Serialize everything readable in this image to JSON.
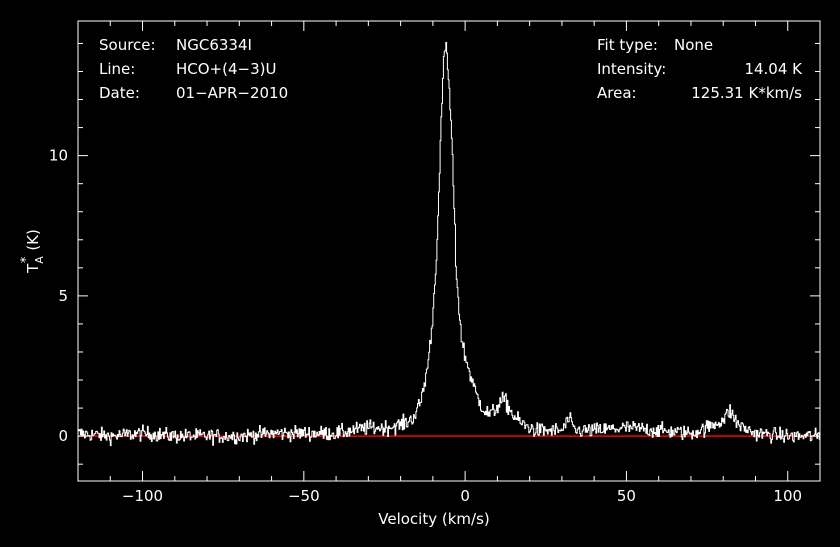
{
  "chart_data": {
    "type": "line",
    "background": "#000000",
    "colors": {
      "axes": "#ffffff",
      "spectrum": "#ffffff",
      "baseline": "#ff0000"
    },
    "xlabel": "Velocity (km/s)",
    "ylabel": "T_A^* (K)",
    "ylabel_parts": {
      "main": "T",
      "sub": "A",
      "sup": "*",
      "unit": "(K)"
    },
    "xlim": [
      -120,
      110
    ],
    "ylim": [
      -1.6,
      14.8
    ],
    "xticks": [
      -100,
      -50,
      0,
      50,
      100
    ],
    "xtick_labels": [
      "−100",
      "−50",
      "0",
      "50",
      "100"
    ],
    "yticks": [
      0,
      5,
      10
    ],
    "ytick_labels": [
      "0",
      "5",
      "10"
    ],
    "baseline_y": 0,
    "info_left": [
      {
        "key": "Source:",
        "value": "NGC6334I"
      },
      {
        "key": "Line:",
        "value": "HCO+(4−3)U"
      },
      {
        "key": "Date:",
        "value": "01−APR−2010"
      }
    ],
    "info_right": [
      {
        "key": "Fit type:",
        "value": "None"
      },
      {
        "key": "Intensity:",
        "value": "14.04 K"
      },
      {
        "key": "Area:",
        "value": "125.31 K*km/s"
      }
    ],
    "series": [
      {
        "x": [
          -120,
          -110,
          -100,
          -90,
          -80,
          -70,
          -60,
          -50,
          -40,
          -30,
          -25,
          -20,
          -18,
          -16,
          -15,
          -14,
          -13,
          -12,
          -11,
          -10,
          -9,
          -8,
          -7.5,
          -7,
          -6.5,
          -6,
          -5.5,
          -5,
          -4.5,
          -4,
          -3.5,
          -3,
          -2,
          -1,
          0,
          1,
          2,
          3,
          4,
          5,
          6,
          7,
          8,
          9,
          10,
          11,
          12,
          13,
          14,
          15,
          16,
          17,
          18,
          20,
          22,
          25,
          30,
          32,
          34,
          40,
          50,
          60,
          70,
          75,
          80,
          82,
          84,
          86,
          90,
          100,
          110
        ],
        "y": [
          0.1,
          0.0,
          0.1,
          0.0,
          0.0,
          0.0,
          0.1,
          0.1,
          0.1,
          0.3,
          0.3,
          0.4,
          0.5,
          0.7,
          0.9,
          1.2,
          1.7,
          2.3,
          3.2,
          4.5,
          6.5,
          9.3,
          11.2,
          12.8,
          13.6,
          14.0,
          13.2,
          12.2,
          11.2,
          9.8,
          8.2,
          6.2,
          4.5,
          3.3,
          2.8,
          2.4,
          2.0,
          1.6,
          1.3,
          1.1,
          0.9,
          0.8,
          0.8,
          0.9,
          1.1,
          1.2,
          1.3,
          1.1,
          0.9,
          0.7,
          0.6,
          0.5,
          0.4,
          0.3,
          0.2,
          0.2,
          0.2,
          0.6,
          0.2,
          0.2,
          0.3,
          0.2,
          0.1,
          0.3,
          0.6,
          0.9,
          0.5,
          0.3,
          0.1,
          0.0,
          0.0
        ]
      }
    ]
  }
}
